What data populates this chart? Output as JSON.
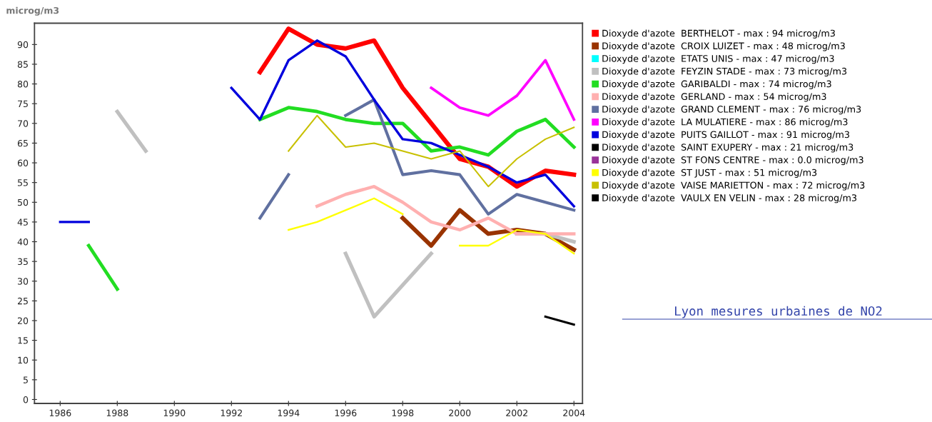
{
  "chart_data": {
    "type": "line",
    "ylabel": "microg/m3",
    "x": [
      1986,
      1987,
      1988,
      1989,
      1990,
      1991,
      1992,
      1993,
      1994,
      1995,
      1996,
      1997,
      1998,
      1999,
      2000,
      2001,
      2002,
      2003,
      2004
    ],
    "xlim": [
      1985.1,
      2004.3
    ],
    "xticks": [
      1986,
      1988,
      1990,
      1992,
      1994,
      1996,
      1998,
      2000,
      2002,
      2004
    ],
    "ylim": [
      -1,
      95.4
    ],
    "yticks": [
      0,
      5,
      10,
      15,
      20,
      25,
      30,
      35,
      40,
      45,
      50,
      55,
      60,
      65,
      70,
      75,
      80,
      85,
      90
    ],
    "grid": false,
    "legend": "right",
    "marker": "none",
    "line_style": "solid",
    "annotations": [
      "Lyon mesures urbaines de NO2"
    ],
    "series": [
      {
        "name": "Dioxyde d'azote  BERTHELOT - max : 94 microg/m3",
        "color": "#ff0000",
        "values": [
          null,
          null,
          null,
          null,
          null,
          null,
          null,
          83,
          94,
          90,
          89,
          91,
          79,
          70,
          61,
          59,
          54,
          58,
          57
        ]
      },
      {
        "name": "Dioxyde d'azote  CROIX LUIZET - max : 48 microg/m3",
        "color": "#993300",
        "values": [
          null,
          null,
          null,
          null,
          null,
          null,
          null,
          null,
          null,
          null,
          null,
          null,
          46,
          39,
          48,
          42,
          43,
          42,
          38
        ]
      },
      {
        "name": "Dioxyde d'azote  ETATS UNIS - max : 47 microg/m3",
        "color": "#00ffff",
        "values": [
          null,
          null,
          null,
          null,
          null,
          null,
          null,
          null,
          null,
          null,
          null,
          null,
          null,
          null,
          null,
          null,
          null,
          null,
          null
        ]
      },
      {
        "name": "Dioxyde d'azote  FEYZIN STADE - max : 73 microg/m3",
        "color": "#c0c0c0",
        "values": [
          null,
          null,
          73,
          63,
          null,
          null,
          null,
          null,
          null,
          null,
          37,
          21,
          29,
          37,
          null,
          null,
          42,
          42,
          40
        ]
      },
      {
        "name": "Dioxyde d'azote  GARIBALDI - max : 74 microg/m3",
        "color": "#22dd22",
        "values": [
          null,
          39,
          28,
          null,
          null,
          null,
          null,
          71,
          74,
          73,
          71,
          70,
          70,
          63,
          64,
          62,
          68,
          71,
          64
        ]
      },
      {
        "name": "Dioxyde d'azote  GERLAND - max : 54 microg/m3",
        "color": "#ffb0b0",
        "values": [
          null,
          null,
          null,
          null,
          null,
          null,
          null,
          null,
          null,
          49,
          52,
          54,
          50,
          45,
          43,
          46,
          42,
          42,
          42
        ]
      },
      {
        "name": "Dioxyde d'azote  GRAND CLEMENT - max : 76 microg/m3",
        "color": "#6070a0",
        "values": [
          null,
          null,
          null,
          null,
          null,
          null,
          null,
          46,
          57,
          null,
          72,
          76,
          57,
          58,
          57,
          47,
          52,
          50,
          48
        ]
      },
      {
        "name": "Dioxyde d'azote  LA MULATIERE - max : 86 microg/m3",
        "color": "#ff00ff",
        "values": [
          null,
          null,
          null,
          null,
          null,
          null,
          null,
          null,
          null,
          null,
          null,
          null,
          null,
          79,
          74,
          72,
          77,
          86,
          71
        ]
      },
      {
        "name": "Dioxyde d'azote  PUITS GAILLOT - max : 91 microg/m3",
        "color": "#0000dd",
        "values": [
          45,
          45,
          null,
          null,
          null,
          null,
          79,
          71,
          86,
          91,
          87,
          76,
          66,
          65,
          62,
          59,
          55,
          57,
          49
        ]
      },
      {
        "name": "Dioxyde d'azote  SAINT EXUPERY - max : 21 microg/m3",
        "color": "#000000",
        "values": [
          null,
          null,
          null,
          null,
          null,
          null,
          null,
          null,
          null,
          null,
          null,
          null,
          null,
          null,
          null,
          null,
          null,
          21,
          19
        ]
      },
      {
        "name": "Dioxyde d'azote  ST FONS CENTRE - max : 0.0 microg/m3",
        "color": "#993399",
        "values": [
          null,
          null,
          null,
          null,
          null,
          null,
          null,
          null,
          null,
          null,
          null,
          null,
          null,
          null,
          null,
          null,
          null,
          null,
          null
        ]
      },
      {
        "name": "Dioxyde d'azote  ST JUST - max : 51 microg/m3",
        "color": "#ffff00",
        "values": [
          null,
          null,
          null,
          null,
          null,
          null,
          null,
          null,
          43,
          45,
          48,
          51,
          47,
          null,
          39,
          39,
          43,
          42,
          37
        ]
      },
      {
        "name": "Dioxyde d'azote  VAISE MARIETTON - max : 72 microg/m3",
        "color": "#c8c000",
        "values": [
          null,
          null,
          null,
          null,
          null,
          null,
          null,
          null,
          63,
          72,
          64,
          65,
          63,
          61,
          63,
          54,
          61,
          66,
          69
        ]
      },
      {
        "name": "Dioxyde d'azote  VAULX EN VELIN - max : 28 microg/m3",
        "color": "#000000",
        "values": [
          null,
          null,
          null,
          null,
          null,
          null,
          null,
          null,
          null,
          null,
          null,
          null,
          null,
          null,
          null,
          null,
          null,
          null,
          null
        ]
      }
    ]
  }
}
